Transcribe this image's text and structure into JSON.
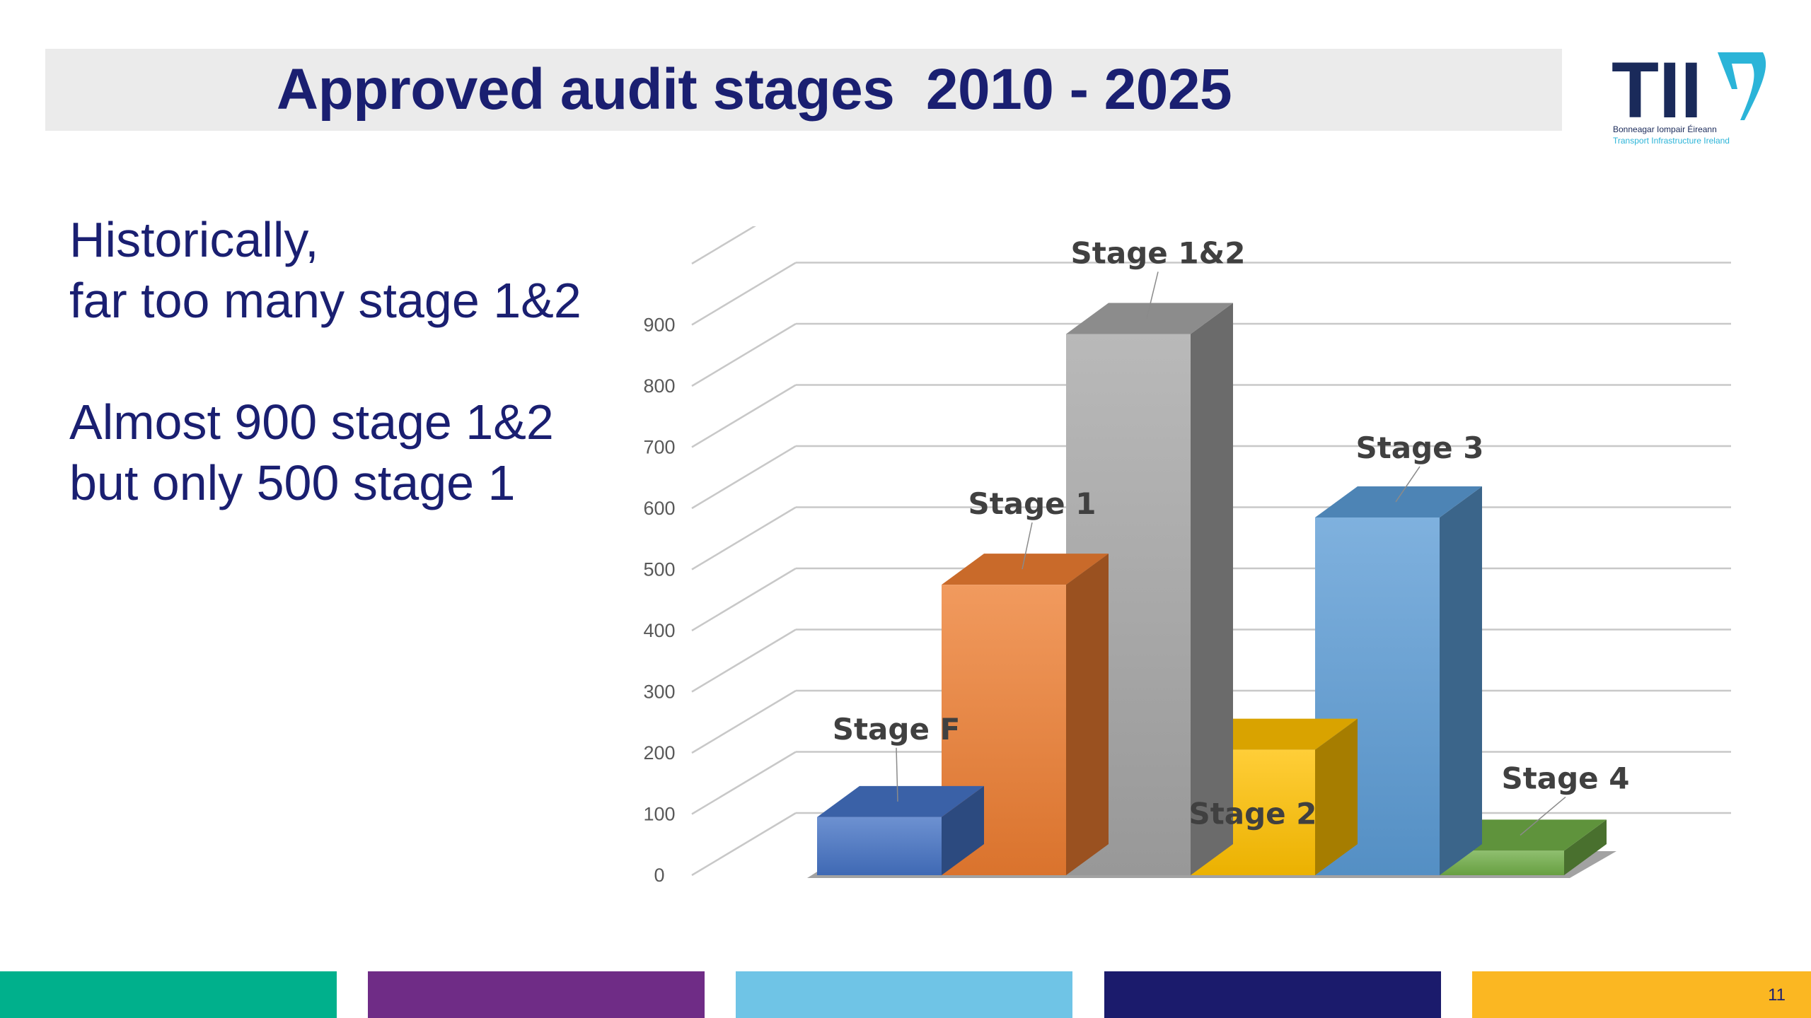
{
  "slide": {
    "title": "Approved audit stages  2010 - 2025",
    "body_lines_1": [
      "Historically,",
      "far too many stage 1&2"
    ],
    "body_lines_2": [
      "Almost 900 stage 1&2",
      "but only 500 stage 1"
    ],
    "page_number": "11"
  },
  "logo": {
    "letters": "TII",
    "tagline_irish": "Bonneagar Iompair Éireann",
    "tagline_english": "Transport Infrastructure Ireland",
    "colors": {
      "letters": "#1a2a5a",
      "harp": "#2bb4d8"
    }
  },
  "footer": {
    "stripe_colors": [
      "#00b08c",
      "#6f2c86",
      "#6fc4e6",
      "#1b1b6c",
      "#fbb722"
    ]
  },
  "chart_data": {
    "type": "bar",
    "style": "3d-column",
    "categories": [
      "Stage F",
      "Stage 1",
      "Stage 1&2",
      "Stage 2",
      "Stage 3",
      "Stage 4"
    ],
    "values": [
      95,
      475,
      885,
      205,
      585,
      40
    ],
    "colors": [
      "#4472c4",
      "#ed7d31",
      "#a5a5a5",
      "#ffc000",
      "#5b9bd5",
      "#70ad47"
    ],
    "yticks": [
      0,
      100,
      200,
      300,
      400,
      500,
      600,
      700,
      800,
      900
    ],
    "ylim": [
      0,
      1000
    ],
    "grid": true,
    "legend": "none"
  }
}
